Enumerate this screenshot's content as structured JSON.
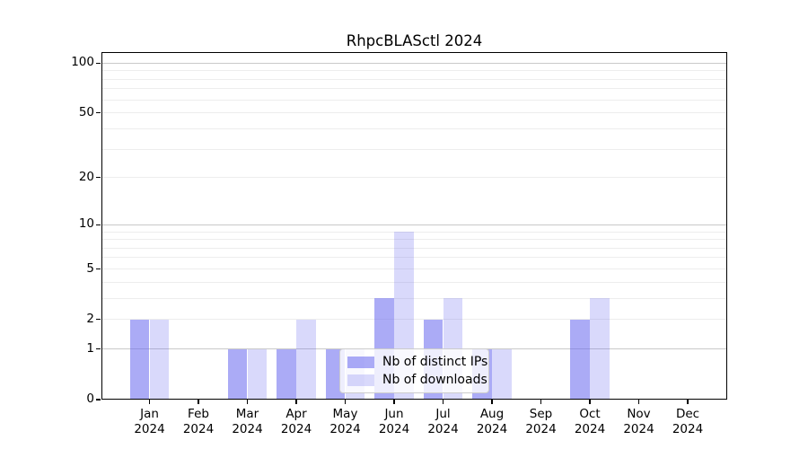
{
  "chart_data": {
    "type": "bar",
    "title": "RhpcBLASctl 2024",
    "categories": [
      "Jan",
      "Feb",
      "Mar",
      "Apr",
      "May",
      "Jun",
      "Jul",
      "Aug",
      "Sep",
      "Oct",
      "Nov",
      "Dec"
    ],
    "year_label": "2024",
    "series": [
      {
        "name": "Nb of distinct IPs",
        "values": [
          2,
          0,
          1,
          1,
          1,
          3,
          2,
          1,
          0,
          2,
          0,
          0
        ],
        "color": "#6666ee",
        "alpha": 0.55
      },
      {
        "name": "Nb of downloads",
        "values": [
          2,
          0,
          1,
          2,
          1,
          9,
          3,
          1,
          0,
          3,
          0,
          0
        ],
        "color": "#6666ee",
        "alpha": 0.25
      }
    ],
    "xlabel": "",
    "ylabel": "",
    "y_axis": {
      "scale": "log1p",
      "tick_values": [
        100,
        50,
        20,
        10,
        5,
        2,
        1,
        0
      ],
      "ylim": [
        0,
        115
      ],
      "major_gridlines": [
        100,
        10,
        1
      ],
      "minor_gridlines": [
        90,
        80,
        70,
        60,
        50,
        40,
        30,
        20,
        9,
        8,
        7,
        6,
        5,
        4,
        3,
        2
      ]
    },
    "legend": {
      "position": "lower center"
    },
    "grid": true,
    "colors": {
      "major_grid": "#c9c9c9",
      "minor_grid": "#ededed",
      "spine": "#000000",
      "text": "#000000"
    }
  }
}
